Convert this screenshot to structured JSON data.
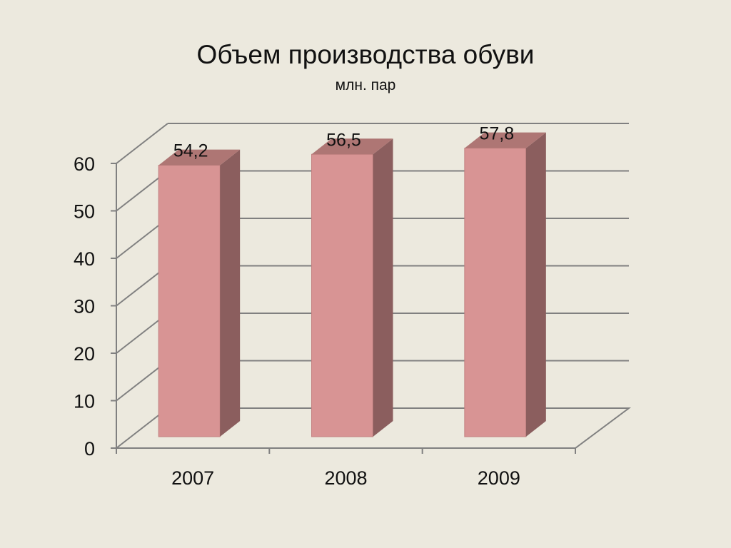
{
  "chart_data": {
    "type": "bar",
    "title": "Объем производства обуви",
    "subtitle": "млн. пар",
    "categories": [
      "2007",
      "2008",
      "2009"
    ],
    "values": [
      54.2,
      56.5,
      57.8
    ],
    "data_labels": [
      "54,2",
      "56,5",
      "57,8"
    ],
    "y_ticks": [
      "0",
      "10",
      "20",
      "30",
      "40",
      "50",
      "60"
    ],
    "ylim": [
      0,
      60
    ],
    "grid": true,
    "legend": "none",
    "style": "3d-column",
    "colors": {
      "background": "#ECE9DE",
      "bar_front": "#D89494",
      "bar_top": "#AE7674",
      "bar_side": "#8B5E5E",
      "gridline": "#808080"
    }
  }
}
